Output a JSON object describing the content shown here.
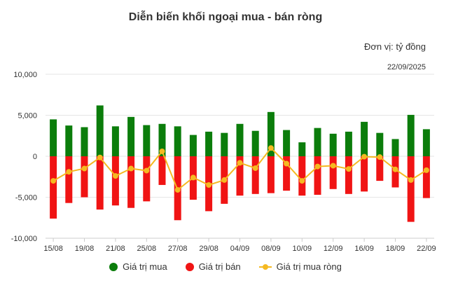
{
  "title": "Diễn biến khối ngoại mua - bán ròng",
  "unit_label": "Đơn vị: tỷ đồng",
  "date_label": "22/09/2025",
  "colors": {
    "buy": "#0b7d0b",
    "sell": "#f01414",
    "net": "#f5b921",
    "grid": "#e6e6e6"
  },
  "legend": [
    {
      "label": "Giá trị mua",
      "icon": "green-circle-icon"
    },
    {
      "label": "Giá trị bán",
      "icon": "red-circle-icon"
    },
    {
      "label": "Giá trị mua ròng",
      "icon": "orange-line-dot-icon"
    }
  ],
  "chart_data": {
    "type": "bar",
    "ylim": [
      -10000,
      10000
    ],
    "yticks": [
      10000,
      5000,
      0,
      -5000,
      -10000
    ],
    "ytick_labels": [
      "10,000",
      "5,000",
      "0",
      "-5,000",
      "-10,000"
    ],
    "xtick_labels": [
      "15/08",
      "19/08",
      "21/08",
      "25/08",
      "27/08",
      "29/08",
      "04/09",
      "08/09",
      "10/09",
      "12/09",
      "16/09",
      "18/09",
      "22/09"
    ],
    "xtick_index": [
      0,
      2,
      4,
      6,
      8,
      10,
      12,
      14,
      16,
      18,
      20,
      22,
      24
    ],
    "n_points": 25,
    "series": [
      {
        "name": "Giá trị mua",
        "type": "bar",
        "values": [
          4500,
          3750,
          3550,
          6200,
          3650,
          4800,
          3800,
          3950,
          3650,
          2600,
          3000,
          2850,
          3950,
          3100,
          5400,
          3200,
          1700,
          3450,
          2750,
          3000,
          4200,
          2850,
          2100,
          5050,
          3300
        ]
      },
      {
        "name": "Giá trị bán",
        "type": "bar",
        "values": [
          -7600,
          -5700,
          -5000,
          -6500,
          -6000,
          -6300,
          -5500,
          -3500,
          -7800,
          -5300,
          -6700,
          -5800,
          -4800,
          -4600,
          -4500,
          -4200,
          -4800,
          -4700,
          -4000,
          -4600,
          -4300,
          -3000,
          -3800,
          -8000,
          -5100
        ]
      },
      {
        "name": "Giá trị mua ròng",
        "type": "line",
        "values": [
          -3000,
          -1900,
          -1500,
          -150,
          -2400,
          -1500,
          -1750,
          600,
          -4100,
          -2600,
          -3500,
          -2900,
          -800,
          -1450,
          1000,
          -900,
          -3000,
          -1250,
          -1150,
          -1550,
          -50,
          -100,
          -1600,
          -2900,
          -1700
        ]
      }
    ]
  }
}
